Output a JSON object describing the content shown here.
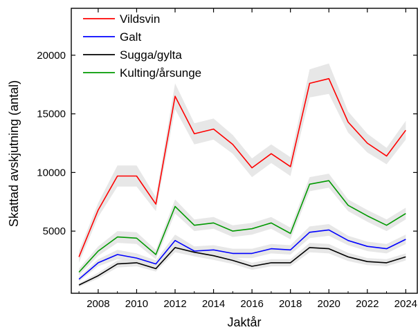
{
  "chart_data": {
    "type": "line",
    "xlabel": "Jaktår",
    "ylabel": "Skattad avskjutning (antal)",
    "xlim": [
      2006.6,
      2024.6
    ],
    "ylim": [
      -300,
      24000
    ],
    "x_ticks": [
      2008,
      2010,
      2012,
      2014,
      2016,
      2018,
      2020,
      2022,
      2024
    ],
    "y_ticks": [
      5000,
      10000,
      15000,
      20000
    ],
    "x_ticks_minor": [
      2007,
      2009,
      2011,
      2013,
      2015,
      2017,
      2019,
      2021,
      2023
    ],
    "legend_position": "top-left",
    "confidence_band_color": "#e3e3e3",
    "x": [
      2007,
      2008,
      2009,
      2010,
      2011,
      2012,
      2013,
      2014,
      2015,
      2016,
      2017,
      2018,
      2019,
      2020,
      2021,
      2022,
      2023,
      2024
    ],
    "series": [
      {
        "name": "Vildsvin",
        "color": "#ff0000",
        "values": [
          2800,
          6800,
          9700,
          9700,
          7300,
          16500,
          13300,
          13700,
          12400,
          10400,
          11600,
          10500,
          17600,
          18000,
          14300,
          12500,
          11400,
          13600
        ],
        "band": [
          500,
          600,
          900,
          900,
          600,
          1100,
          900,
          900,
          800,
          800,
          800,
          800,
          1200,
          1300,
          900,
          800,
          700,
          800
        ]
      },
      {
        "name": "Galt",
        "color": "#0000ff",
        "values": [
          900,
          2300,
          3000,
          2700,
          2200,
          4200,
          3300,
          3400,
          3100,
          3100,
          3500,
          3400,
          4900,
          5100,
          4200,
          3700,
          3500,
          4300
        ],
        "band": [
          200,
          300,
          400,
          400,
          300,
          500,
          400,
          400,
          400,
          400,
          400,
          400,
          500,
          500,
          400,
          400,
          400,
          400
        ]
      },
      {
        "name": "Sugga/gylta",
        "color": "#000000",
        "values": [
          400,
          1200,
          2200,
          2300,
          1800,
          3600,
          3200,
          2900,
          2500,
          2000,
          2300,
          2300,
          3600,
          3500,
          2800,
          2400,
          2300,
          2800
        ],
        "band": [
          150,
          250,
          300,
          300,
          250,
          400,
          350,
          350,
          300,
          300,
          300,
          300,
          400,
          400,
          350,
          300,
          300,
          300
        ]
      },
      {
        "name": "Kulting/årsunge",
        "color": "#009900",
        "values": [
          1500,
          3300,
          4500,
          4400,
          3000,
          7100,
          5500,
          5700,
          5000,
          5200,
          5700,
          4800,
          9000,
          9300,
          7200,
          6300,
          5500,
          6500
        ],
        "band": [
          300,
          400,
          500,
          500,
          400,
          600,
          500,
          500,
          500,
          500,
          500,
          500,
          600,
          600,
          500,
          500,
          500,
          500
        ]
      }
    ]
  }
}
